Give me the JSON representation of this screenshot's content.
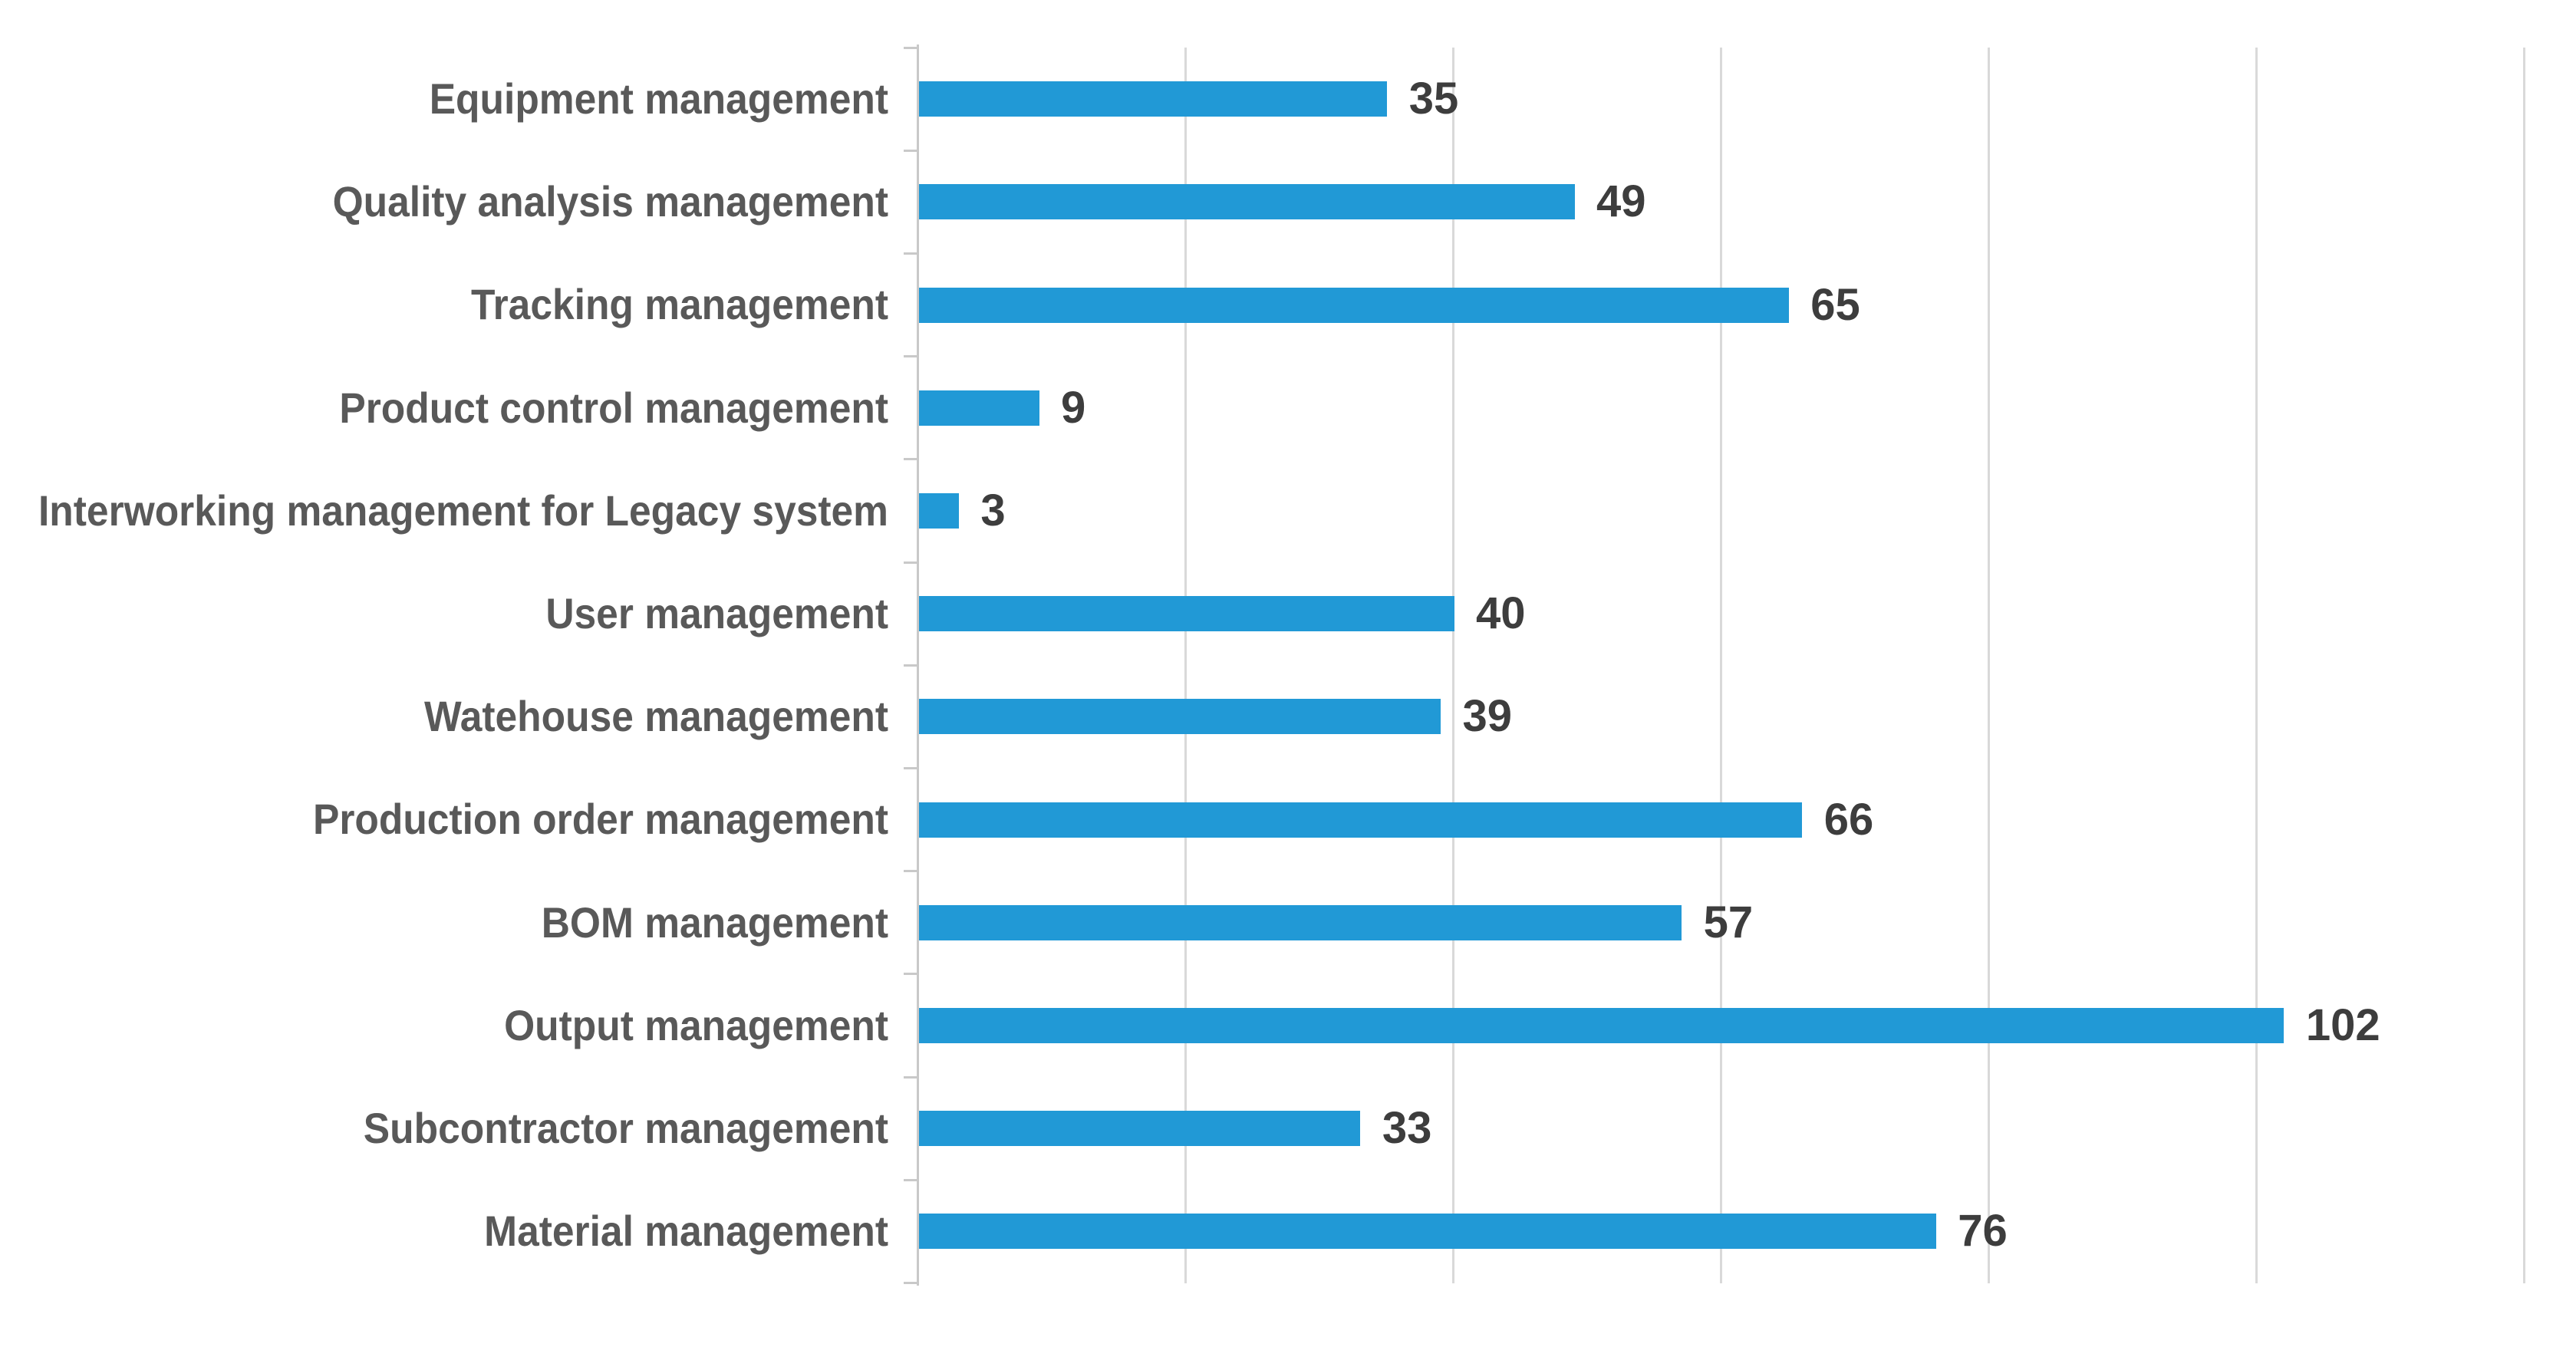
{
  "chart_data": {
    "type": "bar",
    "orientation": "horizontal",
    "title": "",
    "xlabel": "",
    "ylabel": "",
    "categories": [
      "Equipment management",
      "Quality analysis management",
      "Tracking management",
      "Product control management",
      "Interworking management for Legacy system",
      "User management",
      "Watehouse management",
      "Production order management",
      "BOM management",
      "Output management",
      "Subcontractor management",
      "Material management"
    ],
    "values": [
      35,
      49,
      65,
      9,
      3,
      40,
      39,
      66,
      57,
      102,
      33,
      76
    ],
    "data_labels_shown": true,
    "xlim": [
      0,
      120
    ],
    "grid_step": 20,
    "gridlines_x": [
      20,
      40,
      60,
      80,
      100,
      120
    ],
    "x_tick_labels_shown": false,
    "legend": "none",
    "grid": "vertical-only",
    "colors": {
      "bar": "#2199D6",
      "gridline": "#D9D9D9",
      "axis": "#C9C9C9",
      "category_label": "#595959",
      "value_label": "#3D3D3D",
      "background": "#FFFFFF"
    }
  }
}
